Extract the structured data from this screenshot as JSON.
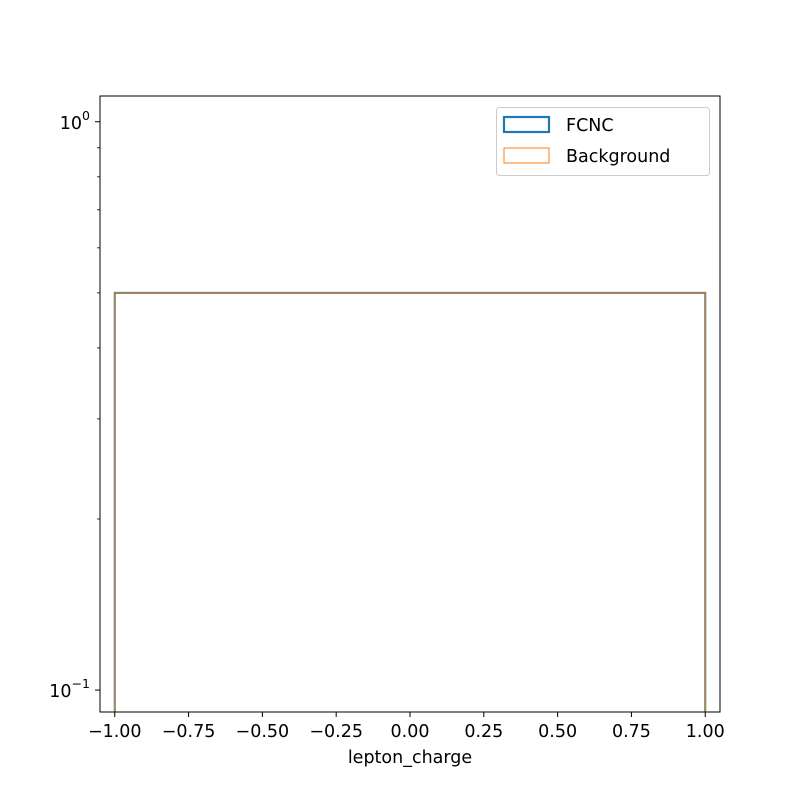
{
  "chart_data": {
    "type": "histogram-step",
    "title": "",
    "xlabel": "lepton_charge",
    "ylabel": "",
    "x_scale": "linear",
    "y_scale": "log",
    "xlim": [
      -1.05,
      1.05
    ],
    "ylim": [
      0.0915,
      1.11
    ],
    "x_ticks": [
      -1.0,
      -0.75,
      -0.5,
      -0.25,
      0.0,
      0.25,
      0.5,
      0.75,
      1.0
    ],
    "x_tick_labels": [
      "−1.00",
      "−0.75",
      "−0.50",
      "−0.25",
      "0.00",
      "0.25",
      "0.50",
      "0.75",
      "1.00"
    ],
    "y_major_ticks": [
      0.1,
      1.0
    ],
    "y_major_tick_labels": [
      {
        "base": "10",
        "exp": "−1"
      },
      {
        "base": "10",
        "exp": "0"
      }
    ],
    "y_minor_ticks": [
      0.2,
      0.3,
      0.4,
      0.5,
      0.6,
      0.7,
      0.8,
      0.9
    ],
    "grid": false,
    "legend_position": "top-right",
    "series": [
      {
        "name": "FCNC",
        "color": "#1f77b4",
        "style": "step-outline-thick",
        "bin_edges": [
          -1.0,
          1.0
        ],
        "values": [
          0.5
        ]
      },
      {
        "name": "Background",
        "color": "#ff7f0e",
        "style": "step-outline-thin",
        "bin_edges": [
          -1.0,
          1.0
        ],
        "values": [
          0.5
        ]
      }
    ]
  }
}
